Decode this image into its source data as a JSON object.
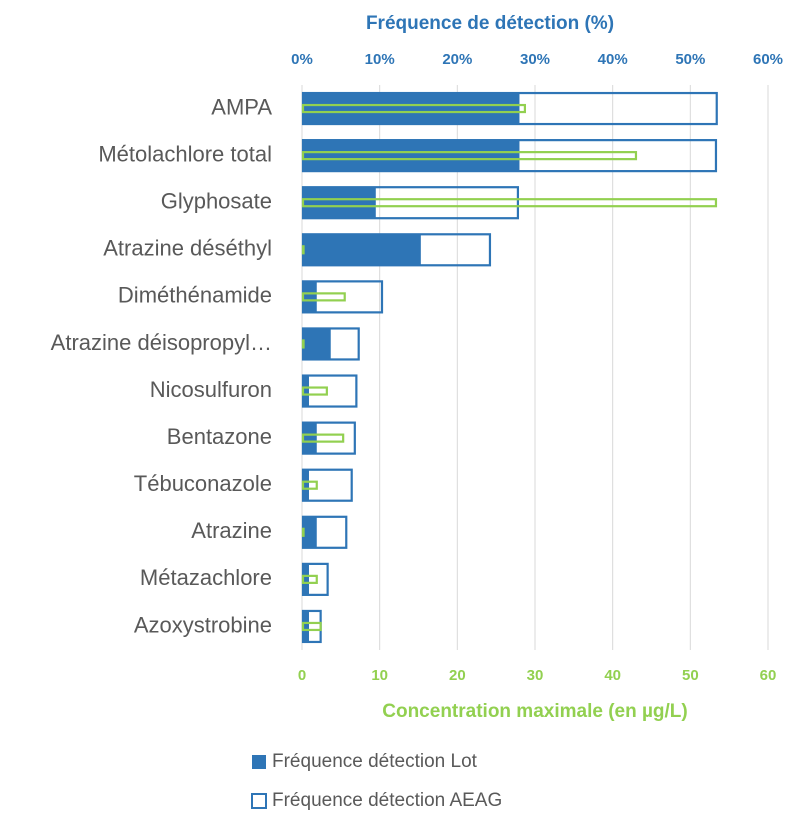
{
  "chart_data": {
    "type": "bar",
    "orientation": "horizontal",
    "x2label": "Fréquence de détection (%)",
    "xlabel": "Concentration maximale (en µg/L)",
    "categories": [
      "AMPA",
      "Métolachlore total",
      "Glyphosate",
      "Atrazine déséthyl",
      "Diméthénamide",
      "Atrazine déisopropyl…",
      "Nicosulfuron",
      "Bentazone",
      "Tébuconazole",
      "Atrazine",
      "Métazachlore",
      "Azoxystrobine"
    ],
    "series": [
      {
        "name": "Fréquence détection Lot",
        "color": "#2e75b6",
        "filled": true,
        "axis": "x2",
        "values": [
          28,
          28,
          9.5,
          15.3,
          1.9,
          3.7,
          0.9,
          1.9,
          0.9,
          1.9,
          0.9,
          0.9
        ]
      },
      {
        "name": "Fréquence détection AEAG",
        "color": "#2e75b6",
        "filled": false,
        "axis": "x2",
        "values": [
          53.4,
          53.3,
          27.8,
          24.2,
          10.3,
          7.3,
          7,
          6.8,
          6.4,
          5.7,
          3.3,
          2.4
        ]
      },
      {
        "color": "#92d050",
        "filled": false,
        "thin": true,
        "values": [
          28.7,
          43,
          53.3,
          0.2,
          5.5,
          0.2,
          3.2,
          5.3,
          1.9,
          0.2,
          1.9,
          2.4
        ]
      }
    ],
    "xlim": [
      0,
      60
    ],
    "xticks": [
      0,
      10,
      20,
      30,
      40,
      50,
      60
    ],
    "x2lim": [
      0,
      60
    ],
    "x2ticks": [
      {
        "value": 0,
        "label": "0%"
      },
      {
        "value": 10,
        "label": "10%"
      },
      {
        "value": 20,
        "label": "20%"
      },
      {
        "value": 30,
        "label": "30%"
      },
      {
        "value": 40,
        "label": "40%"
      },
      {
        "value": 50,
        "label": "50%"
      },
      {
        "value": 60,
        "label": "60%"
      }
    ],
    "grid": true
  }
}
